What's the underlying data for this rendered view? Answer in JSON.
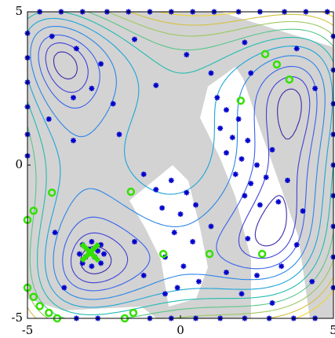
{
  "chart_data": {
    "type": "scatter",
    "xlim": [
      -5,
      5
    ],
    "ylim": [
      -5,
      5
    ],
    "xticks": [
      -5,
      0,
      5
    ],
    "yticks": [
      -5,
      0,
      5
    ],
    "contour_levels": [
      8,
      25,
      50,
      90,
      140,
      200,
      270,
      350,
      440,
      540
    ],
    "contour_colors": [
      "#3b2aa8",
      "#3f41d6",
      "#3761ee",
      "#2a86e8",
      "#1ca6d8",
      "#22bcb0",
      "#58c68a",
      "#9cc85e",
      "#d4c040",
      "#f2d530"
    ],
    "series": [
      {
        "marker": "star",
        "color": "#0000cc",
        "x": [
          -4.6,
          -3.9,
          -3.2,
          -2.4,
          -1.7,
          -1,
          -0.3,
          0.4,
          1.1,
          1.9,
          2.6,
          3.4,
          4.1,
          4.8,
          -5,
          -5,
          -5,
          -5,
          -5,
          -5,
          5,
          5,
          5,
          5,
          5,
          5,
          5,
          5,
          5,
          -3.4,
          -2.7,
          -1,
          -0.3,
          0.5,
          1.3,
          2.1,
          2.9,
          3.7,
          4.4,
          -3.4,
          -2.9,
          -3.5,
          -2.6,
          -2.2,
          -4.2,
          -1.5,
          0.2,
          -0.8,
          1,
          2.1,
          2.3,
          3.8,
          4.4,
          -4.3,
          -3.5,
          -2,
          -1.2,
          -4.1,
          -3.8,
          -1.5,
          -1.2,
          -0.5,
          1.2,
          1.5,
          1.9,
          1.3,
          1.7,
          2.2,
          1.5,
          2,
          2.5,
          1.8,
          2.3,
          2.8,
          3,
          3.2,
          2.6,
          2.1,
          3.5,
          -0.8,
          -0.3,
          0.2,
          -0.6,
          0,
          0.5,
          -0.2,
          0.4,
          -0.5,
          0.1,
          0.6,
          -0.1,
          1,
          1.5,
          2,
          2.5,
          3.3,
          3.8,
          4.3,
          4,
          3,
          2.2,
          -3.2,
          -3.3,
          -3.2,
          -2.9,
          -2.6,
          -2.5,
          -2.6,
          -2.9,
          -3,
          -2.8,
          -3.1,
          -2.7
        ],
        "y": [
          5,
          5,
          5,
          5,
          5,
          5,
          5,
          5,
          5,
          5,
          5,
          5,
          5,
          5,
          4.3,
          3.5,
          2.7,
          1.9,
          1,
          0.3,
          4.2,
          3.1,
          2,
          1,
          0,
          -1,
          -2,
          -3,
          -4,
          -5,
          -5,
          -5,
          -5,
          -5,
          -5,
          -5,
          -5,
          -5,
          -5,
          3.8,
          2.5,
          2.2,
          3.3,
          2,
          4.2,
          4.1,
          3.6,
          2.6,
          3,
          4,
          3,
          3.8,
          2.5,
          1.5,
          0.8,
          1,
          -0.3,
          -2.2,
          -4,
          -2.5,
          -3.6,
          -4.2,
          2.2,
          1.8,
          1.5,
          1.2,
          0.9,
          0.8,
          0.4,
          0.2,
          0,
          -0.3,
          -0.6,
          -0.4,
          0.5,
          -1.2,
          -1.3,
          -1,
          -0.5,
          -0.8,
          -0.5,
          -0.9,
          -1.4,
          -1.6,
          -1.3,
          -2.2,
          -2.5,
          -3,
          -3.3,
          -3.8,
          -4,
          -2,
          -3.5,
          -4.2,
          -3.6,
          -3.3,
          -2.6,
          -3.8,
          -1.5,
          -4.5,
          -2.4,
          -2.6,
          -2.9,
          -3.2,
          -2.5,
          -2.6,
          -2.9,
          -3.2,
          -3.3,
          -2.75,
          -3,
          -3,
          -2.8
        ]
      },
      {
        "marker": "circle",
        "color": "#33e000",
        "x": [
          2.77,
          3.15,
          3.56,
          1.97,
          -4.2,
          -1.62,
          -4.8,
          -5,
          -0.56,
          0.95,
          2.67,
          -5,
          -4.8,
          -4.6,
          -4.3,
          -4.03,
          -1.82,
          -1.54
        ],
        "y": [
          3.62,
          3.28,
          2.79,
          2.1,
          -0.9,
          -0.87,
          -1.49,
          -1.79,
          -2.9,
          -2.9,
          -2.9,
          -4,
          -4.3,
          -4.6,
          -4.82,
          -5,
          -5,
          -4.82
        ]
      },
      {
        "marker": "x",
        "color": "#33e000",
        "x": [
          -2.95
        ],
        "y": [
          -2.85
        ]
      }
    ]
  }
}
